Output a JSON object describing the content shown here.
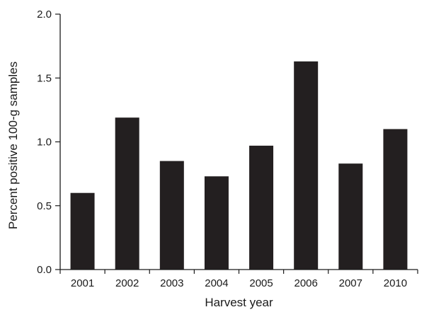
{
  "chart_data": {
    "type": "bar",
    "title": "",
    "xlabel": "Harvest year",
    "ylabel": "Percent positive 100-g samples",
    "categories": [
      "2001",
      "2002",
      "2003",
      "2004",
      "2005",
      "2006",
      "2007",
      "2010"
    ],
    "values": [
      0.6,
      1.19,
      0.85,
      0.73,
      0.97,
      1.63,
      0.83,
      1.1
    ],
    "ylim": [
      0,
      2.0
    ],
    "yticks": [
      "0.0",
      "0.5",
      "1.0",
      "1.5",
      "2.0"
    ],
    "grid": false,
    "legend": "none",
    "colors": {
      "bar": "#231f20",
      "axis": "#1a1a1a"
    }
  }
}
